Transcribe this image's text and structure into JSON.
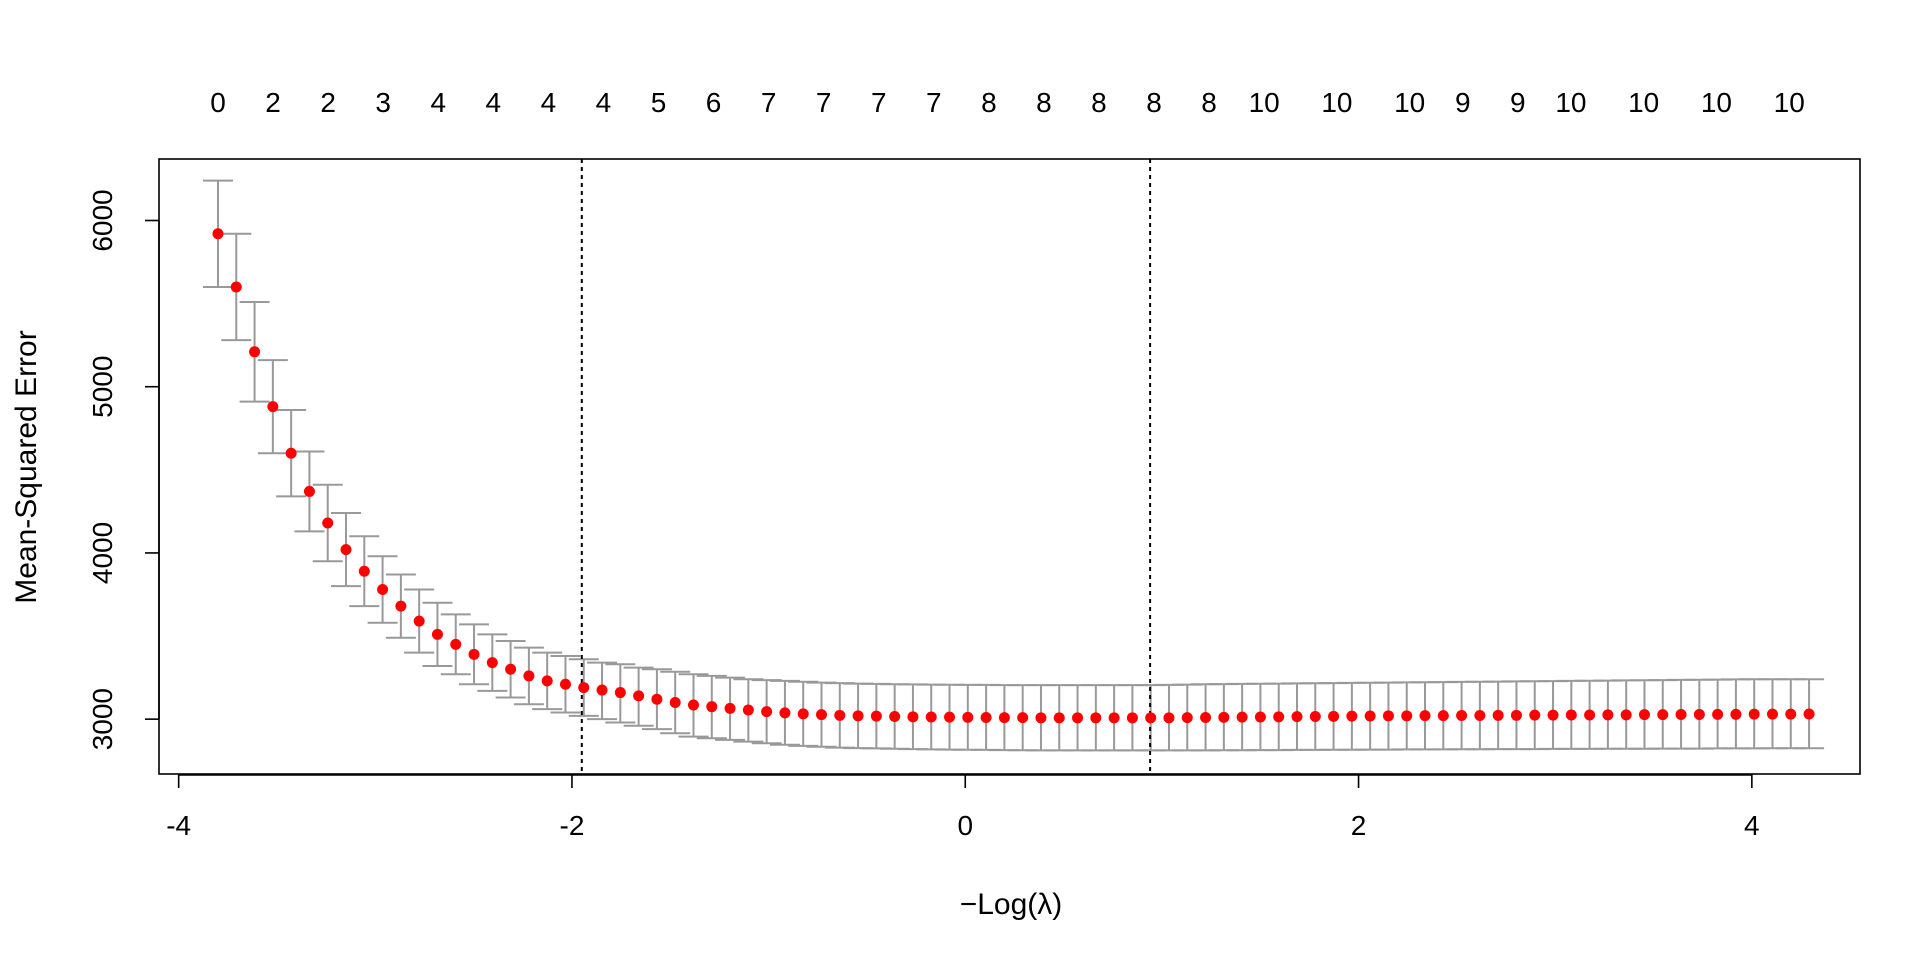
{
  "chart_data": {
    "type": "scatter",
    "title": "",
    "xlabel": "−Log(λ)",
    "ylabel": "Mean-Squared Error",
    "xlim": [
      -4.1,
      4.55
    ],
    "ylim": [
      2670,
      6370
    ],
    "x_ticks": [
      -4,
      -2,
      0,
      2,
      4
    ],
    "x_tick_labels": [
      "-4",
      "-2",
      "0",
      "2",
      "4"
    ],
    "y_ticks": [
      3000,
      4000,
      5000,
      6000
    ],
    "y_tick_labels": [
      "3000",
      "4000",
      "5000",
      "6000"
    ],
    "top_axis_label_positions": [
      -3.8,
      -3.52,
      -3.24,
      -2.96,
      -2.68,
      -2.4,
      -2.12,
      -1.84,
      -1.56,
      -1.28,
      -1.0,
      -0.72,
      -0.44,
      -0.16,
      0.12,
      0.4,
      0.68,
      0.96,
      1.24,
      1.52,
      1.89,
      2.26,
      2.53,
      2.81,
      3.08,
      3.45,
      3.82,
      4.19
    ],
    "top_axis_labels": [
      "0",
      "2",
      "2",
      "3",
      "4",
      "4",
      "4",
      "4",
      "5",
      "6",
      "7",
      "7",
      "7",
      "7",
      "8",
      "8",
      "8",
      "8",
      "8",
      "10",
      "10",
      "10",
      "9",
      "9",
      "10",
      "10",
      "10",
      "10"
    ],
    "vertical_lines": [
      -1.95,
      0.94
    ],
    "grid": false,
    "legend": "none",
    "point_color": "#ff0000",
    "errorbar_color": "#999999",
    "series": [
      {
        "x": [
          -3.8,
          -3.707,
          -3.614,
          -3.521,
          -3.428,
          -3.335,
          -3.242,
          -3.149,
          -3.056,
          -2.963,
          -2.87,
          -2.777,
          -2.684,
          -2.591,
          -2.498,
          -2.405,
          -2.312,
          -2.219,
          -2.126,
          -2.033,
          -1.94,
          -1.847,
          -1.754,
          -1.661,
          -1.568,
          -1.475,
          -1.382,
          -1.289,
          -1.196,
          -1.103,
          -1.01,
          -0.917,
          -0.824,
          -0.731,
          -0.638,
          -0.545,
          -0.452,
          -0.359,
          -0.266,
          -0.173,
          -0.08,
          0.013,
          0.106,
          0.199,
          0.292,
          0.385,
          0.478,
          0.571,
          0.664,
          0.757,
          0.85,
          0.943,
          1.036,
          1.129,
          1.222,
          1.315,
          1.408,
          1.501,
          1.594,
          1.687,
          1.78,
          1.873,
          1.966,
          2.059,
          2.152,
          2.245,
          2.338,
          2.431,
          2.524,
          2.617,
          2.71,
          2.803,
          2.896,
          2.989,
          3.082,
          3.175,
          3.268,
          3.361,
          3.454,
          3.547,
          3.64,
          3.733,
          3.826,
          3.919,
          4.012,
          4.105,
          4.198,
          4.291
        ],
        "y": [
          5920,
          5600,
          5210,
          4880,
          4600,
          4370,
          4180,
          4020,
          3890,
          3780,
          3680,
          3590,
          3510,
          3450,
          3390,
          3340,
          3300,
          3260,
          3230,
          3210,
          3190,
          3175,
          3160,
          3140,
          3120,
          3100,
          3085,
          3075,
          3065,
          3055,
          3045,
          3038,
          3032,
          3027,
          3023,
          3020,
          3018,
          3016,
          3014,
          3013,
          3012,
          3011,
          3010,
          3009,
          3009,
          3008,
          3008,
          3008,
          3008,
          3008,
          3008,
          3008,
          3008,
          3009,
          3010,
          3011,
          3012,
          3013,
          3014,
          3015,
          3016,
          3017,
          3018,
          3019,
          3020,
          3020,
          3021,
          3021,
          3022,
          3022,
          3023,
          3023,
          3024,
          3024,
          3025,
          3025,
          3026,
          3026,
          3027,
          3027,
          3028,
          3028,
          3029,
          3029,
          3030,
          3030,
          3030,
          3031
        ],
        "upper": [
          6240,
          5920,
          5510,
          5160,
          4860,
          4610,
          4410,
          4240,
          4100,
          3980,
          3870,
          3780,
          3700,
          3630,
          3570,
          3510,
          3470,
          3430,
          3400,
          3380,
          3360,
          3340,
          3330,
          3310,
          3300,
          3285,
          3270,
          3260,
          3250,
          3240,
          3235,
          3230,
          3225,
          3220,
          3217,
          3214,
          3212,
          3210,
          3209,
          3208,
          3207,
          3206,
          3206,
          3205,
          3205,
          3205,
          3205,
          3205,
          3205,
          3205,
          3205,
          3205,
          3206,
          3208,
          3210,
          3211,
          3212,
          3213,
          3214,
          3215,
          3216,
          3217,
          3218,
          3219,
          3220,
          3221,
          3222,
          3223,
          3224,
          3225,
          3226,
          3227,
          3228,
          3229,
          3230,
          3231,
          3232,
          3233,
          3234,
          3235,
          3236,
          3237,
          3238,
          3239,
          3240,
          3240,
          3240,
          3240
        ],
        "lower": [
          5600,
          5280,
          4910,
          4600,
          4340,
          4130,
          3950,
          3800,
          3680,
          3580,
          3490,
          3400,
          3320,
          3270,
          3210,
          3170,
          3130,
          3090,
          3060,
          3040,
          3020,
          3000,
          2980,
          2960,
          2940,
          2915,
          2895,
          2885,
          2875,
          2865,
          2855,
          2846,
          2839,
          2834,
          2829,
          2826,
          2824,
          2822,
          2820,
          2818,
          2817,
          2816,
          2815,
          2814,
          2813,
          2812,
          2812,
          2812,
          2812,
          2812,
          2812,
          2812,
          2812,
          2812,
          2812,
          2813,
          2813,
          2814,
          2814,
          2815,
          2815,
          2816,
          2816,
          2817,
          2817,
          2818,
          2818,
          2818,
          2819,
          2819,
          2820,
          2820,
          2820,
          2821,
          2821,
          2821,
          2822,
          2822,
          2822,
          2823,
          2823,
          2823,
          2824,
          2824,
          2824,
          2825,
          2825,
          2825
        ]
      }
    ]
  }
}
